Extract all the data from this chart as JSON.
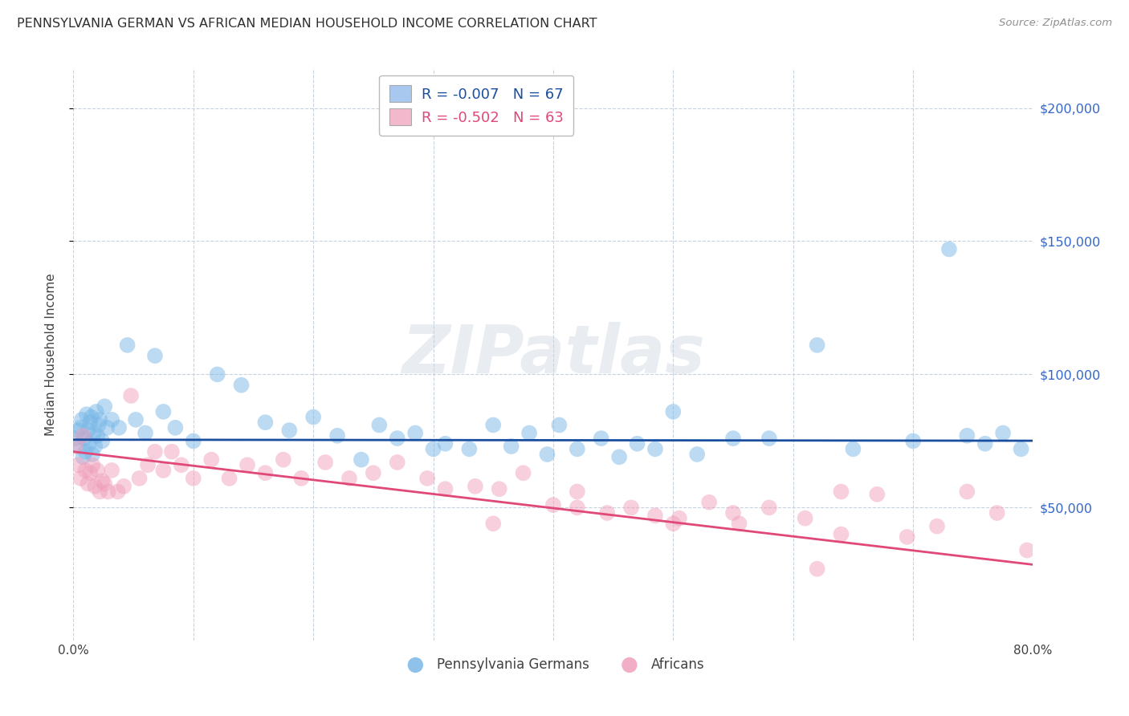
{
  "title": "PENNSYLVANIA GERMAN VS AFRICAN MEDIAN HOUSEHOLD INCOME CORRELATION CHART",
  "source": "Source: ZipAtlas.com",
  "ylabel": "Median Household Income",
  "xlim": [
    0,
    80
  ],
  "ylim": [
    0,
    215000
  ],
  "yticks": [
    50000,
    100000,
    150000,
    200000
  ],
  "ytick_labels": [
    "$50,000",
    "$100,000",
    "$150,000",
    "$200,000"
  ],
  "xtick_positions": [
    0,
    10,
    20,
    30,
    40,
    50,
    60,
    70,
    80
  ],
  "xtick_labels": [
    "0.0%",
    "",
    "",
    "",
    "",
    "",
    "",
    "",
    "80.0%"
  ],
  "legend_blue_label": "R = -0.007   N = 67",
  "legend_pink_label": "R = -0.502   N = 63",
  "legend_blue_patch_color": "#a8c8f0",
  "legend_pink_patch_color": "#f4b8cc",
  "scatter_blue_color": "#7ab8e8",
  "scatter_pink_color": "#f0a0bc",
  "line_blue_color": "#1a4fa0",
  "line_pink_color": "#e04878",
  "ytick_color": "#3366cc",
  "grid_color": "#c8d2dc",
  "bg_color": "#ffffff",
  "watermark": "ZIPatlas",
  "title_color": "#303030",
  "source_color": "#909090",
  "title_fontsize": 11.5,
  "scatter_alpha": 0.5,
  "scatter_size": 200,
  "blue_points_x": [
    0.2,
    0.4,
    0.5,
    0.6,
    0.7,
    0.8,
    0.9,
    1.0,
    1.1,
    1.2,
    1.3,
    1.4,
    1.5,
    1.6,
    1.7,
    1.8,
    1.9,
    2.0,
    2.1,
    2.2,
    2.4,
    2.6,
    2.8,
    3.2,
    3.8,
    4.5,
    5.2,
    6.0,
    6.8,
    7.5,
    8.5,
    10.0,
    12.0,
    14.0,
    16.0,
    18.0,
    20.0,
    22.0,
    24.0,
    25.5,
    27.0,
    28.5,
    30.0,
    31.0,
    33.0,
    35.0,
    36.5,
    38.0,
    39.5,
    40.5,
    42.0,
    44.0,
    45.5,
    47.0,
    48.5,
    50.0,
    52.0,
    55.0,
    58.0,
    62.0,
    65.0,
    70.0,
    73.0,
    74.5,
    76.0,
    77.5,
    79.0
  ],
  "blue_points_y": [
    76000,
    79000,
    73000,
    80000,
    83000,
    69000,
    76000,
    71000,
    85000,
    79000,
    74000,
    82000,
    84000,
    70000,
    78000,
    73000,
    86000,
    77000,
    81000,
    83000,
    75000,
    88000,
    80000,
    83000,
    80000,
    111000,
    83000,
    78000,
    107000,
    86000,
    80000,
    75000,
    100000,
    96000,
    82000,
    79000,
    84000,
    77000,
    68000,
    81000,
    76000,
    78000,
    72000,
    74000,
    72000,
    81000,
    73000,
    78000,
    70000,
    81000,
    72000,
    76000,
    69000,
    74000,
    72000,
    86000,
    70000,
    76000,
    76000,
    111000,
    72000,
    75000,
    147000,
    77000,
    74000,
    78000,
    72000
  ],
  "pink_points_x": [
    0.2,
    0.4,
    0.6,
    0.8,
    1.0,
    1.2,
    1.4,
    1.6,
    1.8,
    2.0,
    2.2,
    2.4,
    2.6,
    2.9,
    3.2,
    3.7,
    4.2,
    4.8,
    5.5,
    6.2,
    6.8,
    7.5,
    8.2,
    9.0,
    10.0,
    11.5,
    13.0,
    14.5,
    16.0,
    17.5,
    19.0,
    21.0,
    23.0,
    25.0,
    27.0,
    29.5,
    31.0,
    33.5,
    35.5,
    37.5,
    40.0,
    42.0,
    44.5,
    46.5,
    48.5,
    50.5,
    53.0,
    55.5,
    58.0,
    61.0,
    64.0,
    67.0,
    69.5,
    72.0,
    74.5,
    77.0,
    79.5,
    42.0,
    35.0,
    50.0,
    55.0,
    64.0,
    62.0
  ],
  "pink_points_y": [
    73000,
    66000,
    61000,
    77000,
    64000,
    59000,
    63000,
    66000,
    58000,
    64000,
    56000,
    60000,
    59000,
    56000,
    64000,
    56000,
    58000,
    92000,
    61000,
    66000,
    71000,
    64000,
    71000,
    66000,
    61000,
    68000,
    61000,
    66000,
    63000,
    68000,
    61000,
    67000,
    61000,
    63000,
    67000,
    61000,
    57000,
    58000,
    57000,
    63000,
    51000,
    56000,
    48000,
    50000,
    47000,
    46000,
    52000,
    44000,
    50000,
    46000,
    56000,
    55000,
    39000,
    43000,
    56000,
    48000,
    34000,
    50000,
    44000,
    44000,
    48000,
    40000,
    27000
  ]
}
